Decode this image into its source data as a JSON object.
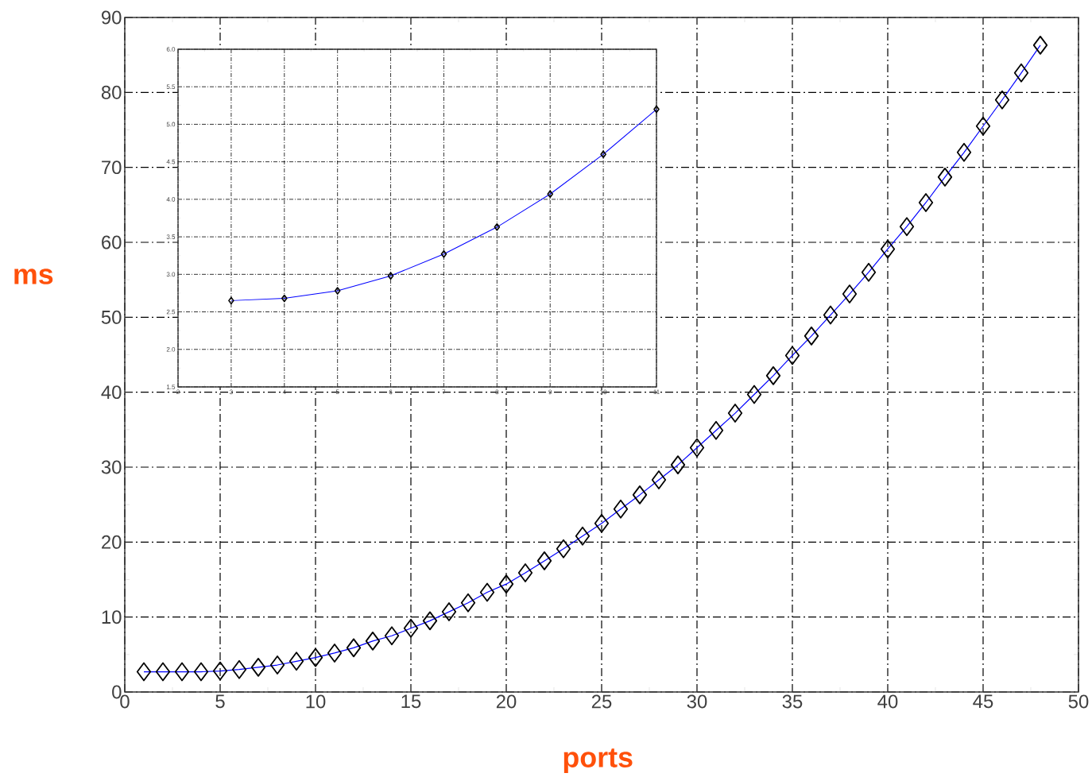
{
  "chart_data": [
    {
      "type": "line",
      "xlabel": "ports",
      "ylabel": "ms",
      "x": [
        1,
        2,
        3,
        4,
        5,
        6,
        7,
        8,
        9,
        10,
        11,
        12,
        13,
        14,
        15,
        16,
        17,
        18,
        19,
        20,
        21,
        22,
        23,
        24,
        25,
        26,
        27,
        28,
        29,
        30,
        31,
        32,
        33,
        34,
        35,
        36,
        37,
        38,
        39,
        40,
        41,
        42,
        43,
        44,
        45,
        46,
        47,
        48
      ],
      "series": [
        {
          "color": "#0000ff",
          "values": [
            2.7,
            2.7,
            2.7,
            2.7,
            2.8,
            3.0,
            3.3,
            3.6,
            4.1,
            4.6,
            5.2,
            5.9,
            6.8,
            7.5,
            8.5,
            9.5,
            10.7,
            11.9,
            13.3,
            14.4,
            15.9,
            17.5,
            19.1,
            20.8,
            22.5,
            24.4,
            26.3,
            28.3,
            30.3,
            32.6,
            34.9,
            37.2,
            39.7,
            42.2,
            44.9,
            47.5,
            50.3,
            53.1,
            56.0,
            59.1,
            62.1,
            65.3,
            68.7,
            72.0,
            75.5,
            79.0,
            82.6,
            86.3
          ]
        }
      ],
      "xlim": [
        0,
        50
      ],
      "ylim": [
        0,
        90
      ],
      "xticks": [
        0,
        5,
        10,
        15,
        20,
        25,
        30,
        35,
        40,
        45,
        50
      ],
      "yticks": [
        0,
        10,
        20,
        30,
        40,
        50,
        60,
        70,
        80,
        90
      ],
      "grid": true,
      "marker": "diamond"
    },
    {
      "type": "line",
      "x": [
        3,
        4,
        5,
        6,
        7,
        8,
        9,
        10,
        11
      ],
      "series": [
        {
          "color": "#0000ff",
          "values": [
            2.65,
            2.68,
            2.78,
            2.98,
            3.27,
            3.63,
            4.07,
            4.6,
            5.2
          ]
        }
      ],
      "xlim": [
        2,
        11
      ],
      "ylim": [
        1.5,
        6.0
      ],
      "xticks": [
        2,
        3,
        4,
        5,
        6,
        7,
        8,
        9,
        10,
        11
      ],
      "yticks": [
        {
          "value": 1.5,
          "label": "1.5"
        },
        {
          "value": 2.0,
          "label": "2.0"
        },
        {
          "value": 2.5,
          "label": "2.5"
        },
        {
          "value": 3.0,
          "label": "3.0"
        },
        {
          "value": 3.5,
          "label": "3.5"
        },
        {
          "value": 4.0,
          "label": "4.0"
        },
        {
          "value": 4.5,
          "label": "4.5"
        },
        {
          "value": 5.0,
          "label": "5.0"
        },
        {
          "value": 5.5,
          "label": "5.5"
        },
        {
          "value": 6.0,
          "label": "6.0"
        }
      ],
      "grid": true,
      "marker": "diamond"
    }
  ]
}
